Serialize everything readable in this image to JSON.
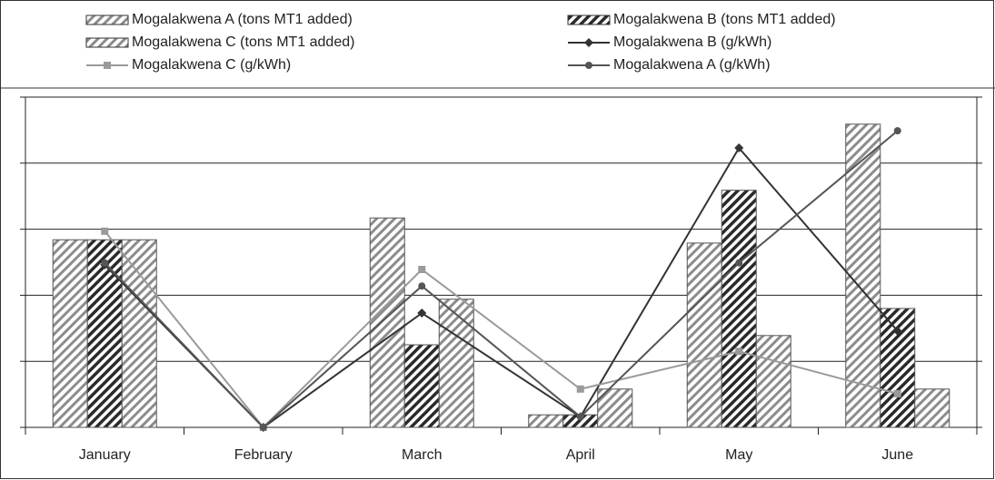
{
  "chart_data": {
    "type": "bar",
    "categories": [
      "January",
      "February",
      "March",
      "April",
      "May",
      "June"
    ],
    "ylim": [
      0,
      5
    ],
    "yticks": [
      0,
      1,
      2,
      3,
      4,
      5
    ],
    "grid": true,
    "series": [
      {
        "name": "Mogalakwena A (tons MT1 added)",
        "type": "bar",
        "color": "#8c8c8c",
        "values": [
          2.84,
          0,
          3.17,
          0.19,
          2.79,
          4.59
        ]
      },
      {
        "name": "Mogalakwena B (tons MT1 added)",
        "type": "bar",
        "color": "#2a2a2a",
        "values": [
          2.84,
          0,
          1.25,
          0.19,
          3.59,
          1.8
        ]
      },
      {
        "name": "Mogalakwena C (tons MT1 added)",
        "type": "bar",
        "color": "#8c8c8c",
        "values": [
          2.84,
          0,
          1.94,
          0.58,
          1.39,
          0.58
        ]
      },
      {
        "name": "Mogalakwena B (g/kWh)",
        "type": "line",
        "marker": "diamond",
        "color": "#333333",
        "values": [
          2.46,
          0,
          1.73,
          0.16,
          4.23,
          1.46
        ]
      },
      {
        "name": "Mogalakwena C (g/kWh)",
        "type": "line",
        "marker": "square",
        "color": "#9a9a9a",
        "values": [
          2.97,
          0,
          2.39,
          0.58,
          1.15,
          0.51
        ]
      },
      {
        "name": "Mogalakwena A (g/kWh)",
        "type": "line",
        "marker": "circle",
        "color": "#555555",
        "values": [
          2.49,
          0,
          2.14,
          0.16,
          2.49,
          4.49
        ]
      }
    ]
  }
}
